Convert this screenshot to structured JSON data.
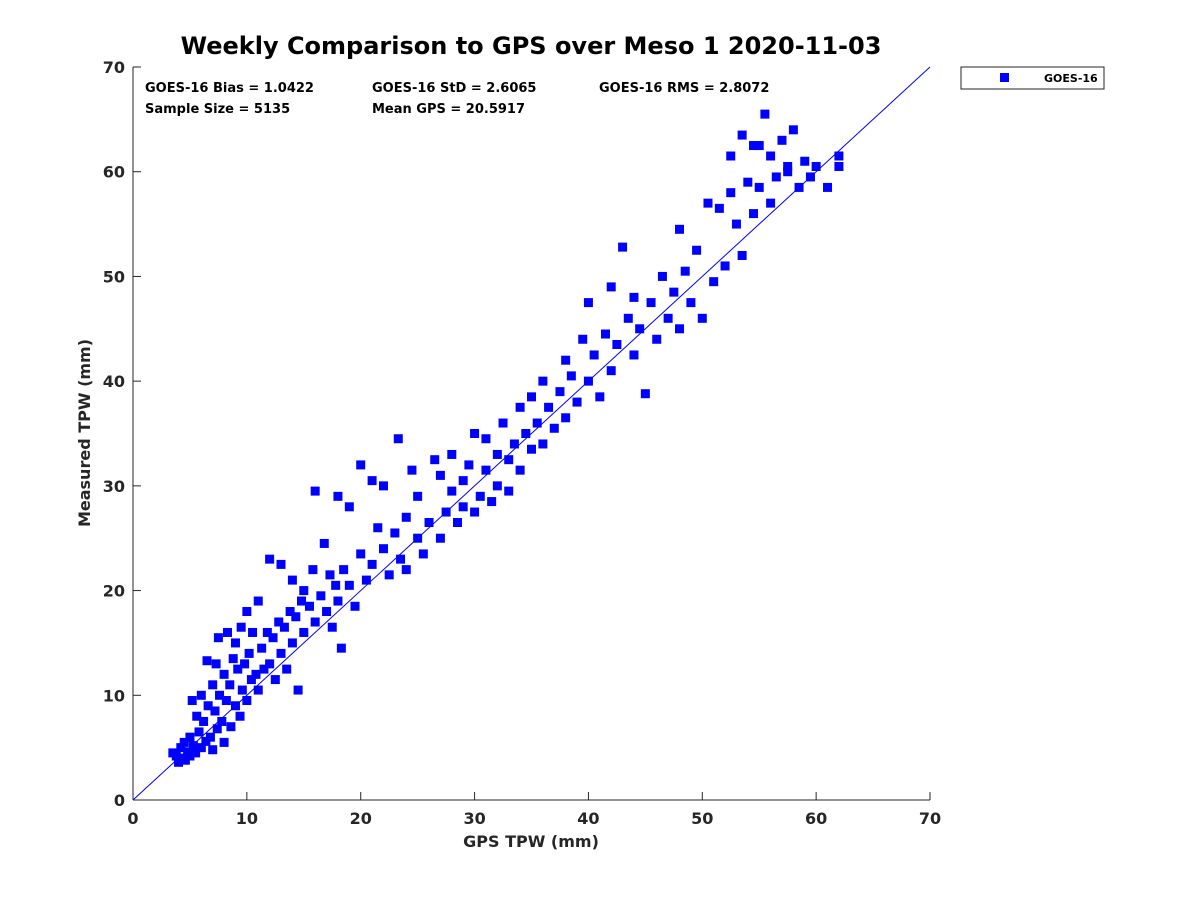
{
  "chart_data": {
    "type": "scatter",
    "title": "Weekly Comparison to GPS over Meso 1 2020-11-03",
    "xlabel": "GPS TPW (mm)",
    "ylabel": "Measured TPW (mm)",
    "xlim": [
      0,
      70
    ],
    "ylim": [
      0,
      70
    ],
    "xticks": [
      "0",
      "10",
      "20",
      "30",
      "40",
      "50",
      "60",
      "70"
    ],
    "yticks": [
      "0",
      "10",
      "20",
      "30",
      "40",
      "50",
      "60",
      "70"
    ],
    "grid": false,
    "legend": {
      "placement": "outside top-right",
      "entries": [
        "GOES-16"
      ]
    },
    "stats": {
      "bias": "GOES-16 Bias = 1.0422",
      "std": "GOES-16 StD = 2.6065",
      "rms": "GOES-16 RMS = 2.8072",
      "sample_size": "Sample Size = 5135",
      "mean_gps": "Mean GPS = 20.5917"
    },
    "reference_line": {
      "label": "1:1 line",
      "from": [
        0,
        0
      ],
      "to": [
        70,
        70
      ]
    },
    "series": [
      {
        "name": "GOES-16",
        "color": "#0000ff",
        "marker": "square",
        "points": [
          [
            3.5,
            4.5
          ],
          [
            3.8,
            4.2
          ],
          [
            4.0,
            3.6
          ],
          [
            4.2,
            5.0
          ],
          [
            4.4,
            4.0
          ],
          [
            4.5,
            5.5
          ],
          [
            4.6,
            3.8
          ],
          [
            4.8,
            4.6
          ],
          [
            5.0,
            6.0
          ],
          [
            5.0,
            4.2
          ],
          [
            5.2,
            9.5
          ],
          [
            5.3,
            5.2
          ],
          [
            5.5,
            4.5
          ],
          [
            5.6,
            8.0
          ],
          [
            5.8,
            6.5
          ],
          [
            6.0,
            5.0
          ],
          [
            6.0,
            10.0
          ],
          [
            6.2,
            7.5
          ],
          [
            6.4,
            5.6
          ],
          [
            6.5,
            13.3
          ],
          [
            6.6,
            9.0
          ],
          [
            6.8,
            6.0
          ],
          [
            7.0,
            11.0
          ],
          [
            7.0,
            4.8
          ],
          [
            7.2,
            8.5
          ],
          [
            7.3,
            13.0
          ],
          [
            7.4,
            6.8
          ],
          [
            7.5,
            15.5
          ],
          [
            7.6,
            10.0
          ],
          [
            7.8,
            7.5
          ],
          [
            8.0,
            12.0
          ],
          [
            8.0,
            5.5
          ],
          [
            8.2,
            9.5
          ],
          [
            8.3,
            16.0
          ],
          [
            8.5,
            11.0
          ],
          [
            8.6,
            7.0
          ],
          [
            8.8,
            13.5
          ],
          [
            9.0,
            9.0
          ],
          [
            9.0,
            15.0
          ],
          [
            9.2,
            12.5
          ],
          [
            9.4,
            8.0
          ],
          [
            9.5,
            16.5
          ],
          [
            9.6,
            10.5
          ],
          [
            9.8,
            13.0
          ],
          [
            10.0,
            18.0
          ],
          [
            10.0,
            9.5
          ],
          [
            10.2,
            14.0
          ],
          [
            10.4,
            11.5
          ],
          [
            10.5,
            16.0
          ],
          [
            10.8,
            12.0
          ],
          [
            11.0,
            19.0
          ],
          [
            11.0,
            10.5
          ],
          [
            11.3,
            14.5
          ],
          [
            11.5,
            12.5
          ],
          [
            11.8,
            16.0
          ],
          [
            12.0,
            23.0
          ],
          [
            12.0,
            13.0
          ],
          [
            12.3,
            15.5
          ],
          [
            12.5,
            11.5
          ],
          [
            12.8,
            17.0
          ],
          [
            13.0,
            22.5
          ],
          [
            13.0,
            14.0
          ],
          [
            13.3,
            16.5
          ],
          [
            13.5,
            12.5
          ],
          [
            13.8,
            18.0
          ],
          [
            14.0,
            21.0
          ],
          [
            14.0,
            15.0
          ],
          [
            14.3,
            17.5
          ],
          [
            14.5,
            10.5
          ],
          [
            14.8,
            19.0
          ],
          [
            15.0,
            20.0
          ],
          [
            15.0,
            16.0
          ],
          [
            15.5,
            18.5
          ],
          [
            15.8,
            22.0
          ],
          [
            16.0,
            17.0
          ],
          [
            16.0,
            29.5
          ],
          [
            16.5,
            19.5
          ],
          [
            16.8,
            24.5
          ],
          [
            17.0,
            18.0
          ],
          [
            17.3,
            21.5
          ],
          [
            17.5,
            16.5
          ],
          [
            17.8,
            20.5
          ],
          [
            18.0,
            29.0
          ],
          [
            18.0,
            19.0
          ],
          [
            18.3,
            14.5
          ],
          [
            18.5,
            22.0
          ],
          [
            19.0,
            28.0
          ],
          [
            19.0,
            20.5
          ],
          [
            19.5,
            18.5
          ],
          [
            20.0,
            23.5
          ],
          [
            20.0,
            32.0
          ],
          [
            20.5,
            21.0
          ],
          [
            21.0,
            30.5
          ],
          [
            21.0,
            22.5
          ],
          [
            21.5,
            26.0
          ],
          [
            22.0,
            24.0
          ],
          [
            22.0,
            30.0
          ],
          [
            22.5,
            21.5
          ],
          [
            23.0,
            25.5
          ],
          [
            23.3,
            34.5
          ],
          [
            23.5,
            23.0
          ],
          [
            24.0,
            27.0
          ],
          [
            24.0,
            22.0
          ],
          [
            24.5,
            31.5
          ],
          [
            25.0,
            25.0
          ],
          [
            25.0,
            29.0
          ],
          [
            25.5,
            23.5
          ],
          [
            26.0,
            26.5
          ],
          [
            26.5,
            32.5
          ],
          [
            27.0,
            25.0
          ],
          [
            27.0,
            31.0
          ],
          [
            27.5,
            27.5
          ],
          [
            28.0,
            29.5
          ],
          [
            28.0,
            33.0
          ],
          [
            28.5,
            26.5
          ],
          [
            29.0,
            30.5
          ],
          [
            29.0,
            28.0
          ],
          [
            29.5,
            32.0
          ],
          [
            30.0,
            27.5
          ],
          [
            30.0,
            35.0
          ],
          [
            30.5,
            29.0
          ],
          [
            31.0,
            31.5
          ],
          [
            31.0,
            34.5
          ],
          [
            31.5,
            28.5
          ],
          [
            32.0,
            33.0
          ],
          [
            32.0,
            30.0
          ],
          [
            32.5,
            36.0
          ],
          [
            33.0,
            32.5
          ],
          [
            33.0,
            29.5
          ],
          [
            33.5,
            34.0
          ],
          [
            34.0,
            31.5
          ],
          [
            34.0,
            37.5
          ],
          [
            34.5,
            35.0
          ],
          [
            35.0,
            33.5
          ],
          [
            35.0,
            38.5
          ],
          [
            35.5,
            36.0
          ],
          [
            36.0,
            34.0
          ],
          [
            36.0,
            40.0
          ],
          [
            36.5,
            37.5
          ],
          [
            37.0,
            35.5
          ],
          [
            37.5,
            39.0
          ],
          [
            38.0,
            42.0
          ],
          [
            38.0,
            36.5
          ],
          [
            38.5,
            40.5
          ],
          [
            39.0,
            38.0
          ],
          [
            39.5,
            44.0
          ],
          [
            40.0,
            40.0
          ],
          [
            40.0,
            47.5
          ],
          [
            40.5,
            42.5
          ],
          [
            41.0,
            38.5
          ],
          [
            41.5,
            44.5
          ],
          [
            42.0,
            41.0
          ],
          [
            42.0,
            49.0
          ],
          [
            42.5,
            43.5
          ],
          [
            43.0,
            52.8
          ],
          [
            43.5,
            46.0
          ],
          [
            44.0,
            42.5
          ],
          [
            44.0,
            48.0
          ],
          [
            44.5,
            45.0
          ],
          [
            45.0,
            38.8
          ],
          [
            45.5,
            47.5
          ],
          [
            46.0,
            44.0
          ],
          [
            46.5,
            50.0
          ],
          [
            47.0,
            46.0
          ],
          [
            47.5,
            48.5
          ],
          [
            48.0,
            54.5
          ],
          [
            48.0,
            45.0
          ],
          [
            48.5,
            50.5
          ],
          [
            49.0,
            47.5
          ],
          [
            49.5,
            52.5
          ],
          [
            50.0,
            46.0
          ],
          [
            50.5,
            57.0
          ],
          [
            51.0,
            49.5
          ],
          [
            51.5,
            56.5
          ],
          [
            52.0,
            51.0
          ],
          [
            52.5,
            58.0
          ],
          [
            53.0,
            55.0
          ],
          [
            53.5,
            52.0
          ],
          [
            54.0,
            59.0
          ],
          [
            54.5,
            56.0
          ],
          [
            55.0,
            62.5
          ],
          [
            55.0,
            58.5
          ],
          [
            55.5,
            65.5
          ],
          [
            56.0,
            57.0
          ],
          [
            56.0,
            61.5
          ],
          [
            56.5,
            59.5
          ],
          [
            57.0,
            63.0
          ],
          [
            57.5,
            60.0
          ],
          [
            58.0,
            64.0
          ],
          [
            58.5,
            58.5
          ],
          [
            59.0,
            61.0
          ],
          [
            59.5,
            59.5
          ],
          [
            60.0,
            60.5
          ],
          [
            61.0,
            58.5
          ],
          [
            62.0,
            60.5
          ],
          [
            62.0,
            61.5
          ],
          [
            53.5,
            63.5
          ],
          [
            54.5,
            62.5
          ],
          [
            52.5,
            61.5
          ],
          [
            57.5,
            60.5
          ]
        ]
      }
    ]
  }
}
